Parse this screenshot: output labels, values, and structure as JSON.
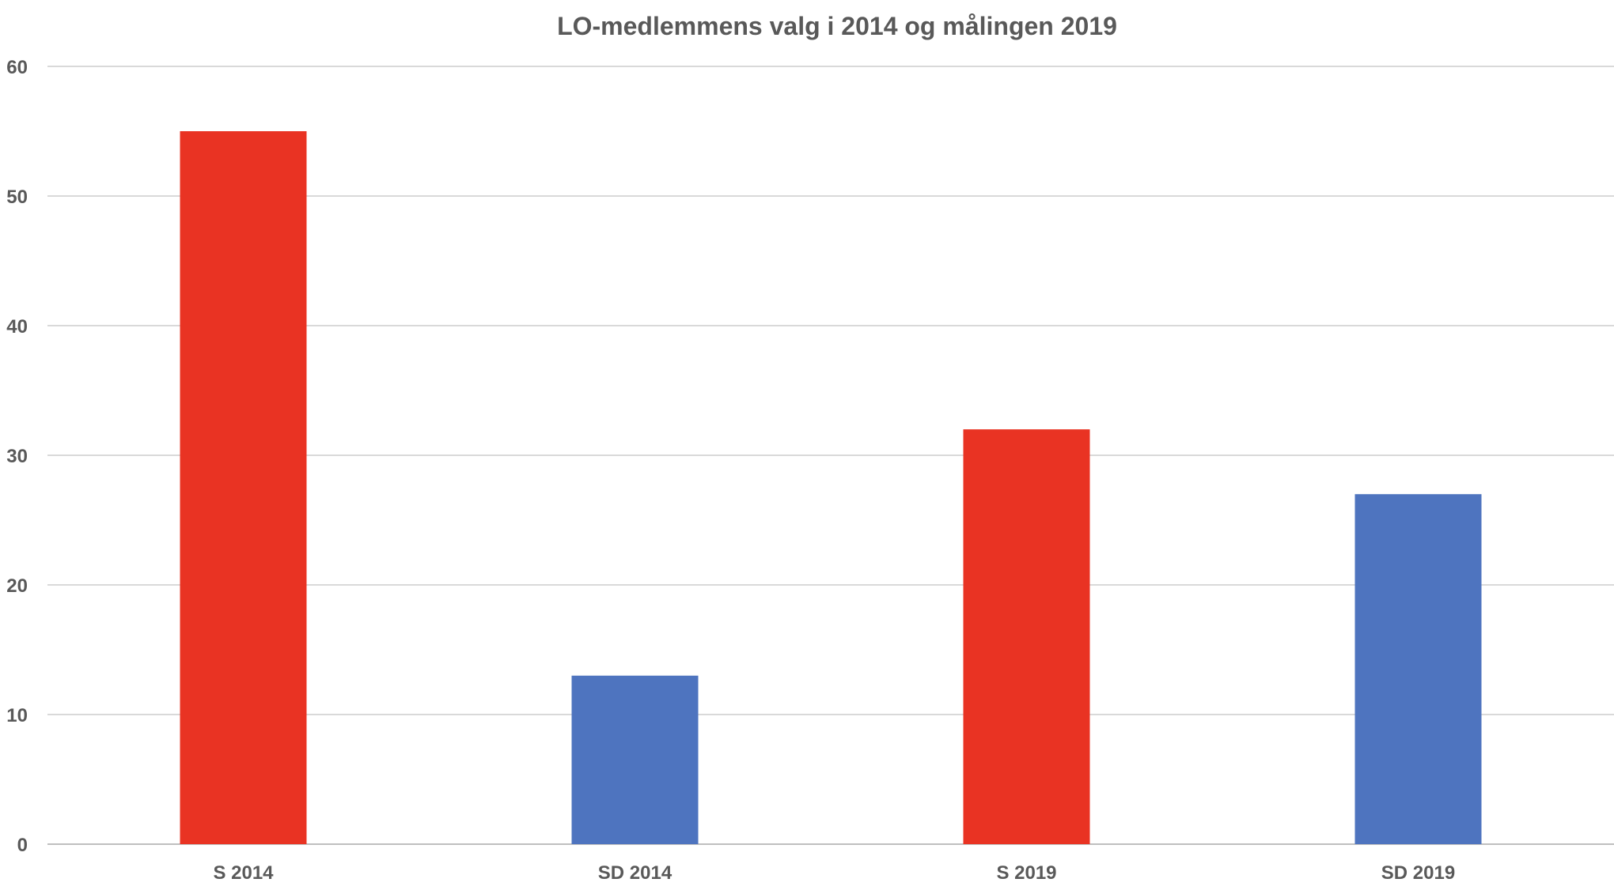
{
  "chart_data": {
    "type": "bar",
    "title": "LO-medlemmens valg i 2014 og målingen 2019",
    "categories": [
      "S 2014",
      "SD 2014",
      "S 2019",
      "SD 2019"
    ],
    "values": [
      55,
      13,
      32,
      27
    ],
    "bar_colors": [
      "#e93323",
      "#4e74bf",
      "#e93323",
      "#4e74bf"
    ],
    "ylim": [
      0,
      60
    ],
    "yticks": [
      0,
      10,
      20,
      30,
      40,
      50,
      60
    ],
    "grid": true,
    "legend": "none",
    "xlabel": "",
    "ylabel": ""
  }
}
